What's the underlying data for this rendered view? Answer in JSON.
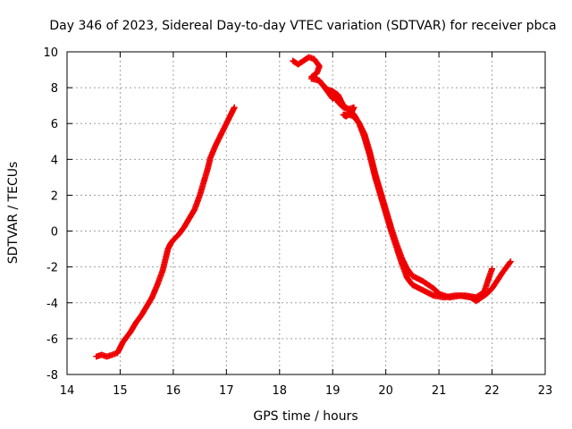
{
  "chart_data": {
    "type": "scatter",
    "title": "Day 346 of 2023, Sidereal Day-to-day VTEC variation (SDTVAR) for receiver pbca",
    "xlabel": "GPS time / hours",
    "ylabel": "SDTVAR / TECUs",
    "xlim": [
      14,
      23
    ],
    "ylim": [
      -8,
      10
    ],
    "xticks": [
      14,
      15,
      16,
      17,
      18,
      19,
      20,
      21,
      22,
      23
    ],
    "yticks": [
      -8,
      -6,
      -4,
      -2,
      0,
      2,
      4,
      6,
      8,
      10
    ],
    "xtick_labels": [
      "14",
      "15",
      "16",
      "17",
      "18",
      "19",
      "20",
      "21",
      "22",
      "23"
    ],
    "ytick_labels": [
      "-8",
      "-6",
      "-4",
      "-2",
      "0",
      "2",
      "4",
      "6",
      "8",
      "10"
    ],
    "grid": true,
    "marker": "plus",
    "color": "#ee0000",
    "series": [
      {
        "name": "segment-1",
        "x": [
          14.55,
          14.65,
          14.75,
          14.85,
          14.95,
          15.0,
          15.05,
          15.1,
          15.2,
          15.3,
          15.4,
          15.5,
          15.6,
          15.7,
          15.8,
          15.85,
          15.9,
          15.95,
          16.0,
          16.1,
          16.2,
          16.3,
          16.4,
          16.5,
          16.55,
          16.6,
          16.65,
          16.7,
          16.8,
          16.9,
          17.0,
          17.1,
          17.15
        ],
        "y": [
          -7.0,
          -6.9,
          -7.0,
          -6.9,
          -6.8,
          -6.5,
          -6.2,
          -6.0,
          -5.6,
          -5.1,
          -4.7,
          -4.2,
          -3.7,
          -3.0,
          -2.2,
          -1.6,
          -1.0,
          -0.7,
          -0.5,
          -0.2,
          0.2,
          0.7,
          1.2,
          2.0,
          2.5,
          3.0,
          3.5,
          4.1,
          4.8,
          5.4,
          6.0,
          6.6,
          6.9
        ]
      },
      {
        "name": "segment-2",
        "x": [
          18.25,
          18.35,
          18.45,
          18.55,
          18.65,
          18.75,
          18.7,
          18.6,
          18.7,
          18.8,
          18.9,
          19.0,
          19.1,
          19.15,
          19.2,
          19.3,
          19.4,
          19.5,
          19.6,
          19.7,
          19.8,
          19.9,
          20.0,
          20.1,
          20.2,
          20.3,
          20.4,
          20.5,
          20.7,
          20.9,
          21.1,
          21.3,
          21.5,
          21.7,
          21.85,
          22.0
        ],
        "y": [
          9.5,
          9.3,
          9.5,
          9.7,
          9.6,
          9.2,
          8.8,
          8.6,
          8.5,
          8.2,
          7.9,
          7.8,
          7.6,
          7.3,
          7.0,
          6.8,
          6.5,
          6.0,
          5.2,
          4.2,
          3.0,
          2.0,
          1.0,
          0.0,
          -0.9,
          -1.8,
          -2.6,
          -3.0,
          -3.3,
          -3.6,
          -3.7,
          -3.6,
          -3.6,
          -3.7,
          -3.4,
          -2.1
        ]
      },
      {
        "name": "segment-3",
        "x": [
          18.6,
          18.75,
          18.85,
          18.95,
          19.0,
          19.05,
          19.1,
          19.2,
          19.3,
          19.4,
          19.35,
          19.25,
          19.2,
          19.3,
          19.4,
          19.5,
          19.6,
          19.7,
          19.8,
          19.9,
          20.0,
          20.1,
          20.2,
          20.3,
          20.4,
          20.5,
          20.7,
          20.9,
          21.0,
          21.2,
          21.4,
          21.6,
          21.7,
          21.8,
          21.9,
          22.0,
          22.2,
          22.35
        ],
        "y": [
          8.5,
          8.4,
          8.0,
          7.6,
          7.4,
          7.5,
          7.2,
          6.9,
          6.8,
          6.9,
          6.6,
          6.4,
          6.5,
          6.5,
          6.4,
          6.0,
          5.4,
          4.4,
          3.2,
          2.2,
          1.2,
          0.2,
          -0.7,
          -1.5,
          -2.1,
          -2.5,
          -2.8,
          -3.2,
          -3.5,
          -3.7,
          -3.6,
          -3.7,
          -3.9,
          -3.7,
          -3.5,
          -3.2,
          -2.3,
          -1.7
        ]
      }
    ]
  }
}
